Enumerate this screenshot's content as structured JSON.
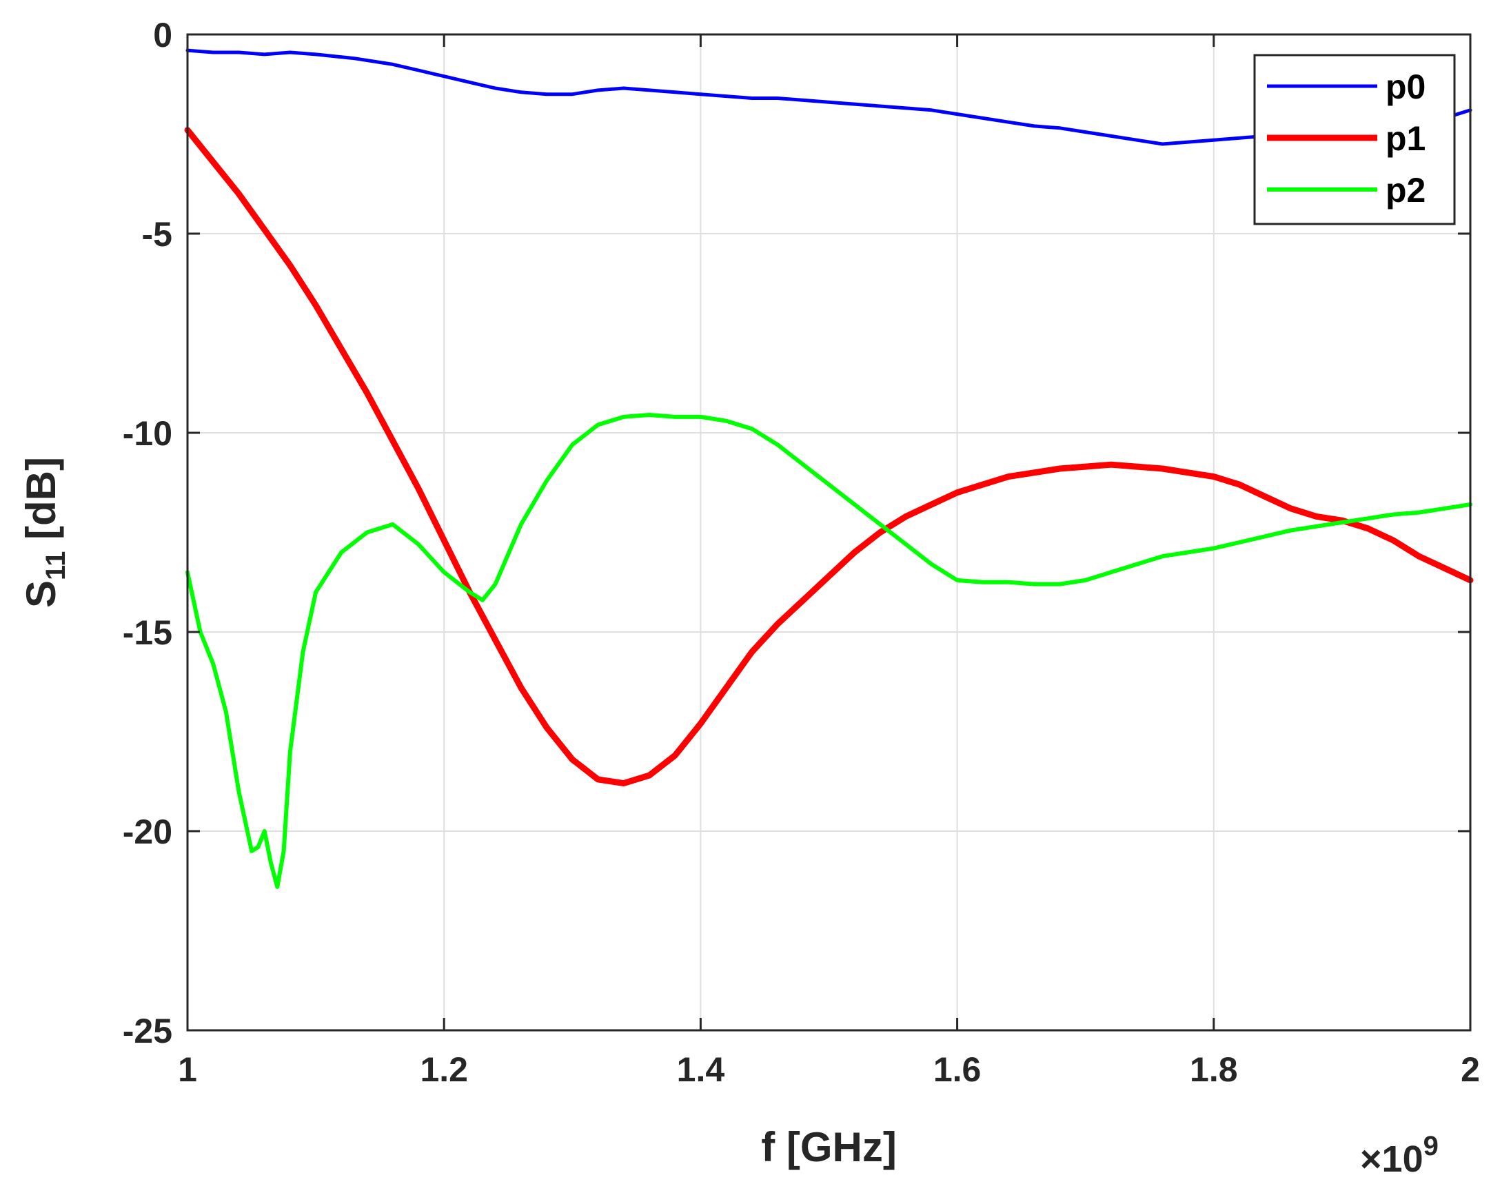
{
  "chart_data": {
    "type": "line",
    "title": "",
    "xlabel": "f [GHz]",
    "ylabel": "S [dB]",
    "ylabel_parts": {
      "main": "S",
      "sub": "11",
      "rest": " [dB]"
    },
    "x_exponent": {
      "base": "×10",
      "power": "9"
    },
    "xlim": [
      1000000000.0,
      2000000000.0
    ],
    "ylim": [
      -25,
      0
    ],
    "x_ticks": [
      1000000000.0,
      1200000000.0,
      1400000000.0,
      1600000000.0,
      1800000000.0,
      2000000000.0
    ],
    "x_tick_labels": [
      "1",
      "1.2",
      "1.4",
      "1.6",
      "1.8",
      "2"
    ],
    "y_ticks": [
      0,
      -5,
      -10,
      -15,
      -20,
      -25
    ],
    "y_tick_labels": [
      "0",
      "-5",
      "-10",
      "-15",
      "-20",
      "-25"
    ],
    "grid": true,
    "legend_position": "top-right",
    "series": [
      {
        "name": "p0",
        "color": "#0000ff",
        "x": [
          1000000000.0,
          1020000000.0,
          1040000000.0,
          1060000000.0,
          1080000000.0,
          1100000000.0,
          1130000000.0,
          1160000000.0,
          1180000000.0,
          1200000000.0,
          1220000000.0,
          1240000000.0,
          1260000000.0,
          1280000000.0,
          1300000000.0,
          1320000000.0,
          1340000000.0,
          1360000000.0,
          1380000000.0,
          1400000000.0,
          1420000000.0,
          1440000000.0,
          1460000000.0,
          1480000000.0,
          1500000000.0,
          1520000000.0,
          1540000000.0,
          1560000000.0,
          1580000000.0,
          1600000000.0,
          1620000000.0,
          1640000000.0,
          1660000000.0,
          1680000000.0,
          1700000000.0,
          1720000000.0,
          1740000000.0,
          1760000000.0,
          1780000000.0,
          1800000000.0,
          1820000000.0,
          1840000000.0,
          1860000000.0,
          1880000000.0,
          1900000000.0,
          1920000000.0,
          1940000000.0,
          1960000000.0,
          1980000000.0,
          2000000000.0
        ],
        "y": [
          -0.4,
          -0.45,
          -0.45,
          -0.5,
          -0.45,
          -0.5,
          -0.6,
          -0.75,
          -0.9,
          -1.05,
          -1.2,
          -1.35,
          -1.45,
          -1.5,
          -1.5,
          -1.4,
          -1.35,
          -1.4,
          -1.45,
          -1.5,
          -1.55,
          -1.6,
          -1.6,
          -1.65,
          -1.7,
          -1.75,
          -1.8,
          -1.85,
          -1.9,
          -2.0,
          -2.1,
          -2.2,
          -2.3,
          -2.35,
          -2.45,
          -2.55,
          -2.65,
          -2.75,
          -2.7,
          -2.65,
          -2.6,
          -2.55,
          -2.5,
          -2.45,
          -2.4,
          -2.35,
          -2.3,
          -2.2,
          -2.1,
          -1.9
        ]
      },
      {
        "name": "p1",
        "color": "#ff0000",
        "x": [
          1000000000.0,
          1020000000.0,
          1040000000.0,
          1060000000.0,
          1080000000.0,
          1100000000.0,
          1120000000.0,
          1140000000.0,
          1160000000.0,
          1180000000.0,
          1200000000.0,
          1220000000.0,
          1240000000.0,
          1260000000.0,
          1280000000.0,
          1300000000.0,
          1320000000.0,
          1340000000.0,
          1360000000.0,
          1380000000.0,
          1400000000.0,
          1420000000.0,
          1440000000.0,
          1460000000.0,
          1480000000.0,
          1500000000.0,
          1520000000.0,
          1540000000.0,
          1560000000.0,
          1580000000.0,
          1600000000.0,
          1620000000.0,
          1640000000.0,
          1660000000.0,
          1680000000.0,
          1700000000.0,
          1720000000.0,
          1740000000.0,
          1760000000.0,
          1780000000.0,
          1800000000.0,
          1820000000.0,
          1840000000.0,
          1860000000.0,
          1880000000.0,
          1900000000.0,
          1920000000.0,
          1940000000.0,
          1960000000.0,
          1980000000.0,
          2000000000.0
        ],
        "y": [
          -2.4,
          -3.2,
          -4.0,
          -4.9,
          -5.8,
          -6.8,
          -7.9,
          -9.0,
          -10.2,
          -11.4,
          -12.7,
          -14.0,
          -15.2,
          -16.4,
          -17.4,
          -18.2,
          -18.7,
          -18.8,
          -18.6,
          -18.1,
          -17.3,
          -16.4,
          -15.5,
          -14.8,
          -14.2,
          -13.6,
          -13.0,
          -12.5,
          -12.1,
          -11.8,
          -11.5,
          -11.3,
          -11.1,
          -11.0,
          -10.9,
          -10.85,
          -10.8,
          -10.85,
          -10.9,
          -11.0,
          -11.1,
          -11.3,
          -11.6,
          -11.9,
          -12.1,
          -12.2,
          -12.4,
          -12.7,
          -13.1,
          -13.4,
          -13.7
        ]
      },
      {
        "name": "p2",
        "color": "#00ff00",
        "x": [
          1000000000.0,
          1010000000.0,
          1020000000.0,
          1030000000.0,
          1040000000.0,
          1050000000.0,
          1055000000.0,
          1060000000.0,
          1065000000.0,
          1070000000.0,
          1075000000.0,
          1080000000.0,
          1090000000.0,
          1100000000.0,
          1120000000.0,
          1140000000.0,
          1160000000.0,
          1180000000.0,
          1200000000.0,
          1220000000.0,
          1230000000.0,
          1240000000.0,
          1260000000.0,
          1280000000.0,
          1300000000.0,
          1320000000.0,
          1340000000.0,
          1360000000.0,
          1380000000.0,
          1400000000.0,
          1420000000.0,
          1440000000.0,
          1460000000.0,
          1480000000.0,
          1500000000.0,
          1520000000.0,
          1540000000.0,
          1560000000.0,
          1580000000.0,
          1600000000.0,
          1620000000.0,
          1640000000.0,
          1660000000.0,
          1680000000.0,
          1700000000.0,
          1720000000.0,
          1740000000.0,
          1760000000.0,
          1780000000.0,
          1800000000.0,
          1820000000.0,
          1840000000.0,
          1860000000.0,
          1880000000.0,
          1900000000.0,
          1920000000.0,
          1940000000.0,
          1960000000.0,
          1980000000.0,
          2000000000.0
        ],
        "y": [
          -13.5,
          -15.0,
          -15.8,
          -17.0,
          -19.0,
          -20.5,
          -20.4,
          -20.0,
          -20.8,
          -21.4,
          -20.5,
          -18.0,
          -15.5,
          -14.0,
          -13.0,
          -12.5,
          -12.3,
          -12.8,
          -13.5,
          -14.0,
          -14.2,
          -13.8,
          -12.3,
          -11.2,
          -10.3,
          -9.8,
          -9.6,
          -9.55,
          -9.6,
          -9.6,
          -9.7,
          -9.9,
          -10.3,
          -10.8,
          -11.3,
          -11.8,
          -12.3,
          -12.8,
          -13.3,
          -13.7,
          -13.75,
          -13.75,
          -13.8,
          -13.8,
          -13.7,
          -13.5,
          -13.3,
          -13.1,
          -13.0,
          -12.9,
          -12.75,
          -12.6,
          -12.45,
          -12.35,
          -12.25,
          -12.15,
          -12.05,
          -12.0,
          -11.9,
          -11.8
        ]
      }
    ]
  }
}
